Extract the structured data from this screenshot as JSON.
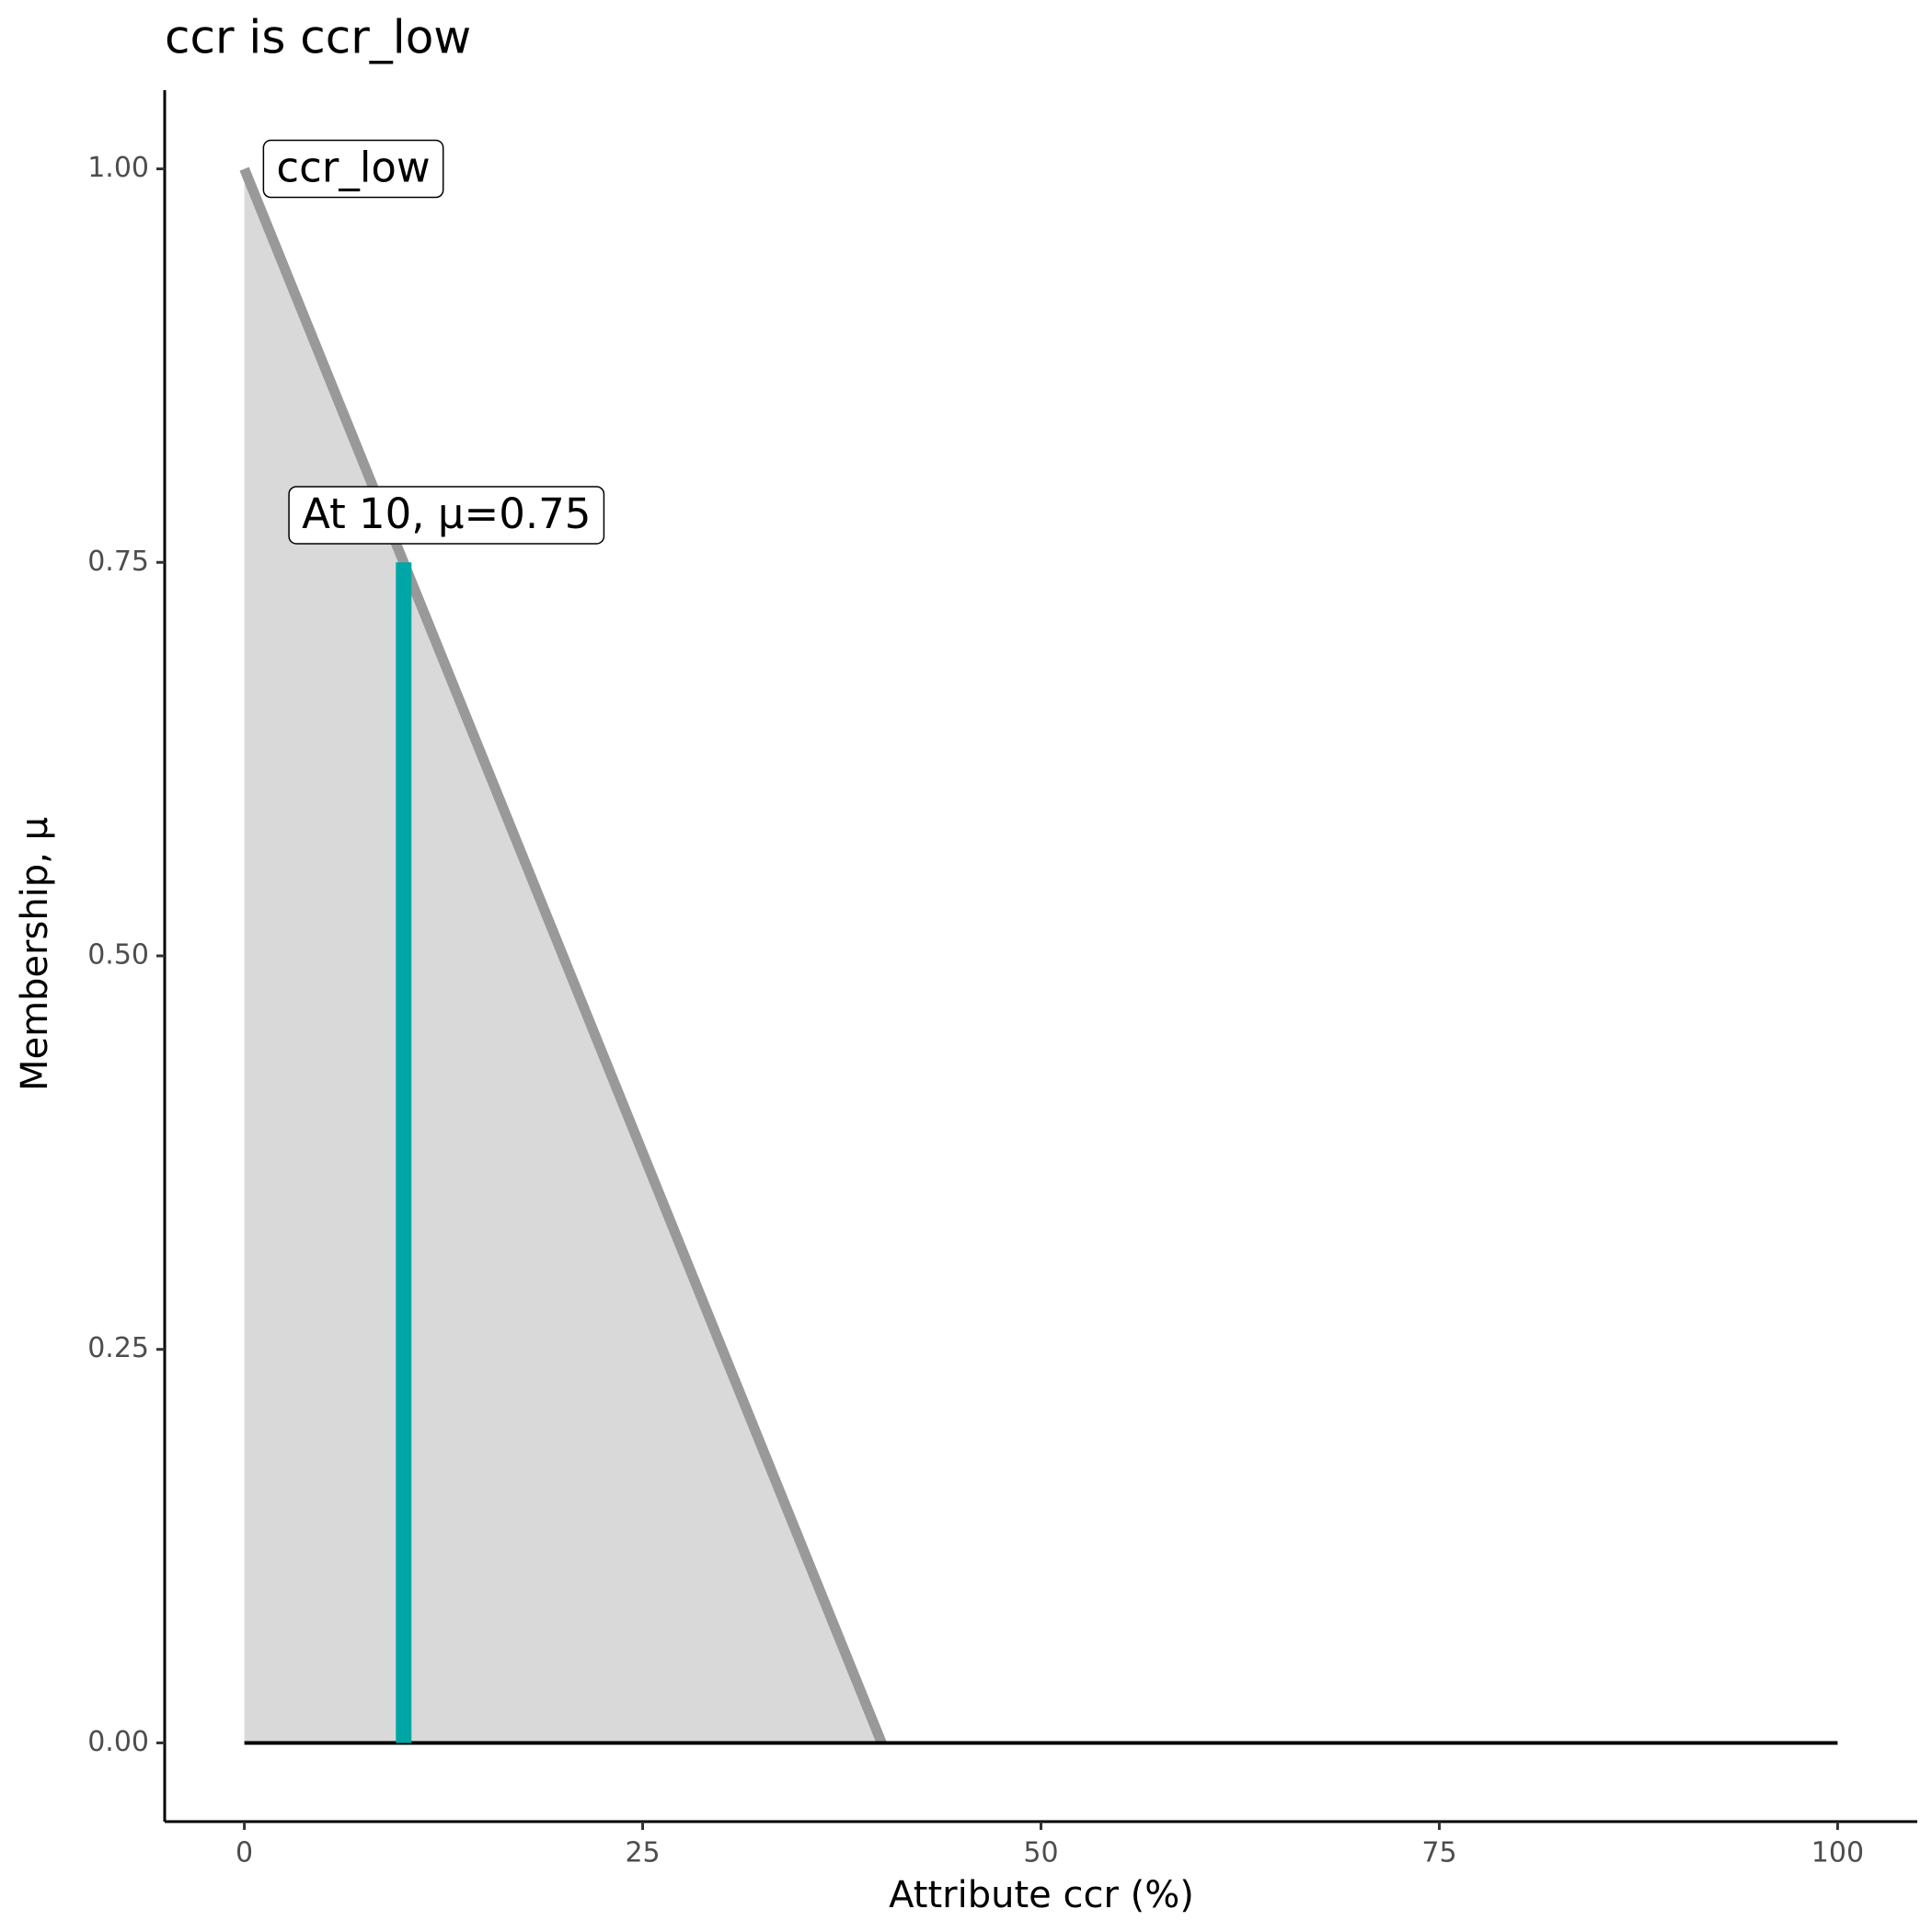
{
  "chart_data": {
    "type": "line",
    "title": "ccr is ccr_low",
    "x_label": "Attribute ccr (%)",
    "y_label": "Membership, μ",
    "series": [
      {
        "name": "ccr_low",
        "color": "#999999",
        "fill": "#d9d9d9",
        "x": [
          0,
          40
        ],
        "values": [
          1,
          0
        ]
      },
      {
        "name": "baseline",
        "color": "#000000",
        "x": [
          0,
          100
        ],
        "values": [
          0,
          0
        ]
      },
      {
        "name": "marker",
        "color": "#00a6a6",
        "x": [
          10,
          10
        ],
        "values": [
          0,
          0.75
        ]
      }
    ],
    "annotations": [
      {
        "text": "ccr_low",
        "x": 1.2,
        "y": 1
      },
      {
        "text": "At 10, μ=0.75",
        "x": 2.8,
        "y": 0.78
      }
    ],
    "xlim": [
      -5,
      105
    ],
    "ylim": [
      -0.05,
      1.05
    ],
    "xticks": [
      0,
      25,
      50,
      75,
      100
    ],
    "yticks": [
      {
        "value": 0,
        "label": "0.00"
      },
      {
        "value": 0.25,
        "label": "0.25"
      },
      {
        "value": 0.5,
        "label": "0.50"
      },
      {
        "value": 0.75,
        "label": "0.75"
      },
      {
        "value": 1,
        "label": "1.00"
      }
    ]
  }
}
